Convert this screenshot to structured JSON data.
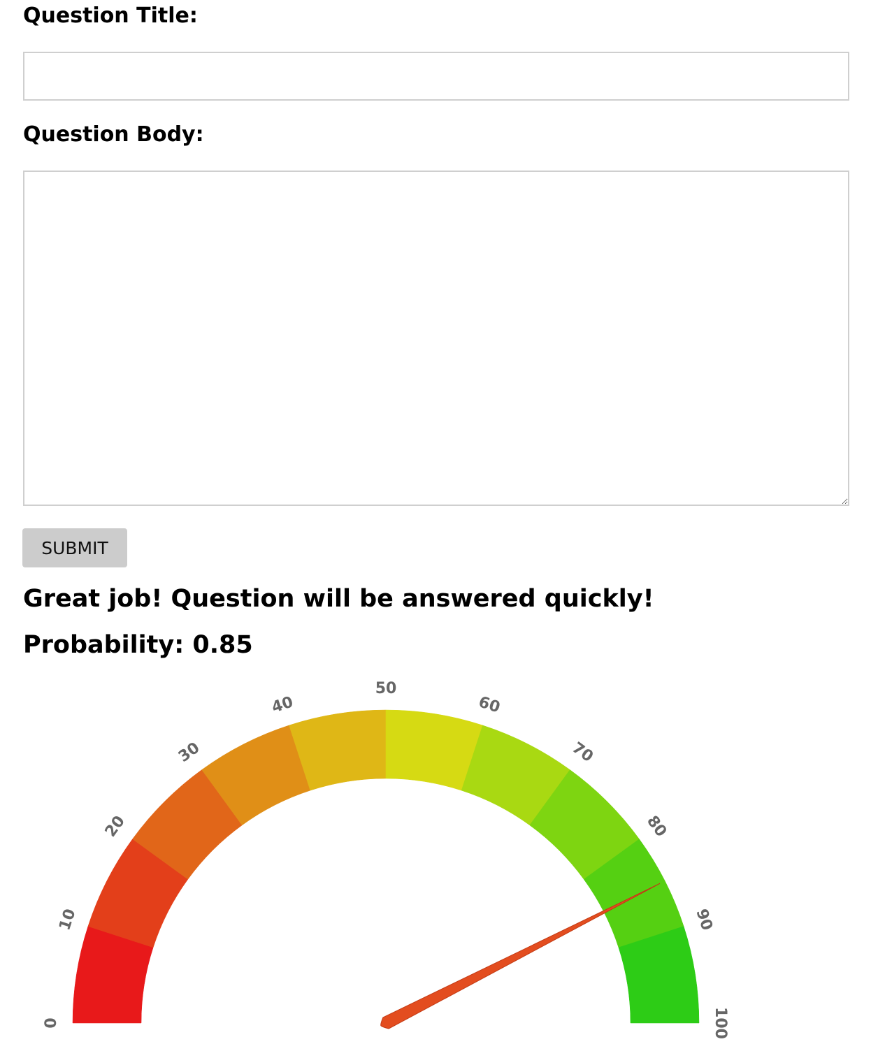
{
  "form": {
    "title_label": "Question Title:",
    "title_value": "",
    "body_label": "Question Body:",
    "body_value": "",
    "submit_label": "SUBMIT"
  },
  "result": {
    "message": "Great job! Question will be answered quickly!",
    "probability_text": "Probability: 0.85"
  },
  "chart_data": {
    "type": "gauge",
    "value": 85,
    "min": 0,
    "max": 100,
    "ticks": [
      0,
      10,
      20,
      30,
      40,
      50,
      60,
      70,
      80,
      90,
      100
    ],
    "band_colors": [
      "#e8191a",
      "#e33f1a",
      "#e16619",
      "#e08f17",
      "#dfb716",
      "#d6da13",
      "#a9d912",
      "#7ed511",
      "#55d012",
      "#2dcc16"
    ],
    "needle_color": "#e34d1f"
  }
}
